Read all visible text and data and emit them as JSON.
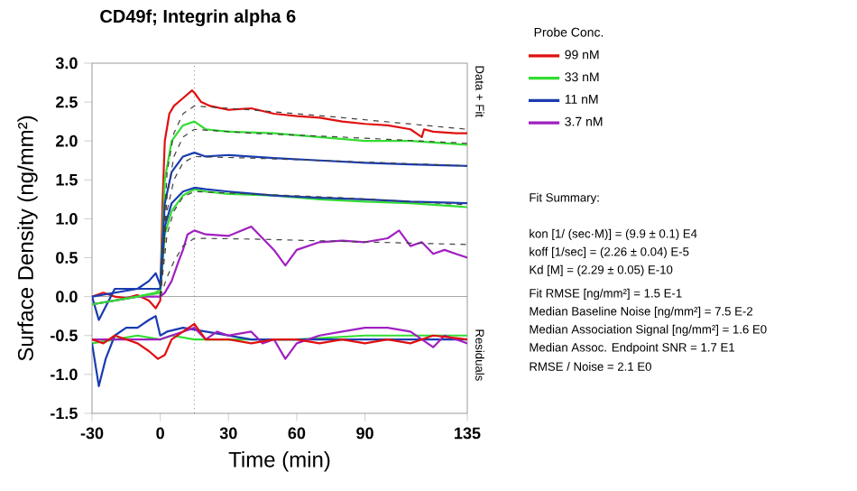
{
  "chart_data": {
    "type": "line",
    "title": "CD49f; Integrin alpha 6",
    "xlabel": "Time (min)",
    "ylabel": "Surface Density (ng/mm²)",
    "legend_title": "Probe Conc.",
    "legend": "right",
    "marker": "none",
    "xlim": [
      -30,
      135
    ],
    "xticks": [
      -30,
      0,
      30,
      60,
      90,
      135
    ],
    "ylim": [
      -1.5,
      3.0
    ],
    "yticks": [
      -1.5,
      {
        "value": -1.0,
        "label": "-1.0"
      },
      -0.5,
      {
        "value": 0.0,
        "label": "0.0"
      },
      0.5,
      {
        "value": 1.0,
        "label": "1.0"
      },
      1.5,
      {
        "value": 2.0,
        "label": "2.0"
      },
      2.5,
      {
        "value": 3.0,
        "label": "3.0"
      }
    ],
    "ref_lines": [
      {
        "axis": "y",
        "value": 0,
        "color": "#808080",
        "line_style": "solid"
      },
      {
        "axis": "x",
        "value": 15,
        "color": "#404040",
        "line_style": "dotted"
      }
    ],
    "annotations": [
      "Data + Fit",
      "Residuals",
      "Fit Summary:",
      "kon  [1/ (sec·M)]  =   (9.9 ± 0.1) E4",
      "koff  [1/sec]  =   (2.26 ± 0.04) E-5",
      "Kd  [M]  =   (2.29 ± 0.05) E-10",
      "Fit RMSE [ng/mm²]  =   1.5 E-1",
      "Median Baseline Noise [ng/mm²]  =   7.5 E-2",
      "Median Association Signal [ng/mm²]  =   1.6 E0",
      "Median Assoc. Endpoint SNR  =   1.7 E1",
      "RMSE / Noise  =   2.1 E0"
    ],
    "series": [
      {
        "name": "99 nM",
        "color": "#e01010",
        "x": [
          -30,
          -25,
          -20,
          -15,
          -10,
          -5,
          -2,
          0,
          1,
          2,
          4,
          6,
          10,
          14,
          15,
          18,
          22,
          30,
          40,
          50,
          60,
          70,
          80,
          90,
          100,
          110,
          115,
          116,
          120,
          130,
          135
        ],
        "values": [
          0.0,
          0.05,
          0.0,
          -0.02,
          0.02,
          -0.05,
          -0.15,
          -0.05,
          1.2,
          2.0,
          2.35,
          2.45,
          2.55,
          2.65,
          2.62,
          2.5,
          2.45,
          2.4,
          2.42,
          2.35,
          2.32,
          2.3,
          2.25,
          2.22,
          2.2,
          2.15,
          2.05,
          2.15,
          2.12,
          2.1,
          2.1
        ]
      },
      {
        "name": "33 nM",
        "color": "#33dd33",
        "x": [
          -30,
          -20,
          -10,
          -2,
          0,
          2,
          5,
          10,
          15,
          20,
          30,
          50,
          70,
          90,
          110,
          135
        ],
        "values": [
          -0.1,
          -0.05,
          0.0,
          0.05,
          0.1,
          1.5,
          2.0,
          2.2,
          2.25,
          2.15,
          2.12,
          2.1,
          2.05,
          2.0,
          2.0,
          1.95
        ]
      },
      {
        "name": "11 nM",
        "color": "#1a3cb0",
        "x": [
          -30,
          -27,
          -20,
          -10,
          -5,
          -2,
          0,
          2,
          5,
          10,
          15,
          20,
          30,
          50,
          70,
          90,
          110,
          135
        ],
        "values": [
          0.0,
          -0.3,
          0.1,
          0.1,
          0.2,
          0.3,
          0.15,
          1.2,
          1.6,
          1.8,
          1.85,
          1.8,
          1.82,
          1.78,
          1.75,
          1.72,
          1.7,
          1.68
        ]
      },
      {
        "name": "3.7 nM",
        "color": "#a020c0",
        "x": [
          -30,
          -20,
          -10,
          0,
          2,
          5,
          8,
          10,
          12,
          15,
          20,
          30,
          40,
          45,
          50,
          55,
          60,
          70,
          80,
          90,
          100,
          105,
          110,
          115,
          120,
          125,
          135
        ],
        "values": [
          -0.1,
          -0.05,
          0.0,
          0.0,
          0.05,
          0.2,
          0.45,
          0.6,
          0.8,
          0.85,
          0.8,
          0.78,
          0.9,
          0.75,
          0.6,
          0.4,
          0.6,
          0.7,
          0.72,
          0.7,
          0.75,
          0.85,
          0.65,
          0.7,
          0.55,
          0.6,
          0.5
        ]
      },
      {
        "color": "#33dd33",
        "x": [
          -30,
          -20,
          -10,
          0,
          2,
          5,
          10,
          15,
          20,
          30,
          50,
          70,
          90,
          110,
          135
        ],
        "values": [
          -0.1,
          -0.05,
          0.0,
          0.05,
          0.8,
          1.1,
          1.3,
          1.38,
          1.35,
          1.32,
          1.3,
          1.25,
          1.22,
          1.2,
          1.15
        ]
      },
      {
        "color": "#1a3cb0",
        "x": [
          -30,
          -20,
          -10,
          0,
          2,
          5,
          10,
          15,
          20,
          30,
          50,
          70,
          90,
          110,
          135
        ],
        "values": [
          0.0,
          0.05,
          0.1,
          0.1,
          0.9,
          1.2,
          1.35,
          1.4,
          1.38,
          1.35,
          1.3,
          1.27,
          1.25,
          1.22,
          1.2
        ]
      },
      {
        "color": "#404040",
        "line_style": "dashed",
        "x": [
          0,
          3,
          6,
          10,
          15,
          40,
          80,
          135
        ],
        "values": [
          0.0,
          1.6,
          2.1,
          2.35,
          2.45,
          2.4,
          2.3,
          2.15
        ]
      },
      {
        "color": "#404040",
        "line_style": "dashed",
        "x": [
          0,
          3,
          6,
          10,
          15,
          40,
          80,
          135
        ],
        "values": [
          0.0,
          1.3,
          1.8,
          2.05,
          2.15,
          2.1,
          2.05,
          1.97
        ]
      },
      {
        "color": "#404040",
        "line_style": "dashed",
        "x": [
          0,
          3,
          6,
          10,
          15,
          40,
          80,
          135
        ],
        "values": [
          0.0,
          1.1,
          1.5,
          1.72,
          1.8,
          1.78,
          1.74,
          1.68
        ]
      },
      {
        "color": "#404040",
        "line_style": "dashed",
        "x": [
          0,
          3,
          6,
          10,
          15,
          40,
          80,
          135
        ],
        "values": [
          0.0,
          0.8,
          1.1,
          1.28,
          1.35,
          1.32,
          1.27,
          1.18
        ]
      },
      {
        "color": "#404040",
        "line_style": "dashed",
        "x": [
          0,
          3,
          6,
          10,
          15,
          40,
          80,
          135
        ],
        "values": [
          0.0,
          0.25,
          0.45,
          0.65,
          0.75,
          0.74,
          0.71,
          0.67
        ]
      },
      {
        "color": "#33dd33",
        "x": [
          -30,
          -20,
          -10,
          0,
          5,
          15,
          30,
          60,
          90,
          120,
          135
        ],
        "values": [
          -0.6,
          -0.55,
          -0.5,
          -0.55,
          -0.5,
          -0.55,
          -0.55,
          -0.55,
          -0.5,
          -0.5,
          -0.5
        ]
      },
      {
        "color": "#1a3cb0",
        "x": [
          -30,
          -27,
          -24,
          -20,
          -15,
          -10,
          -5,
          -2,
          0,
          3,
          10,
          20,
          40,
          60,
          80,
          100,
          135
        ],
        "values": [
          -0.6,
          -1.15,
          -0.8,
          -0.5,
          -0.4,
          -0.4,
          -0.3,
          -0.25,
          -0.5,
          -0.45,
          -0.4,
          -0.45,
          -0.55,
          -0.55,
          -0.55,
          -0.55,
          -0.55
        ]
      },
      {
        "color": "#a020c0",
        "x": [
          -30,
          -20,
          -10,
          0,
          5,
          10,
          15,
          20,
          25,
          30,
          40,
          45,
          50,
          55,
          60,
          70,
          80,
          90,
          100,
          110,
          120,
          125,
          135
        ],
        "values": [
          -0.55,
          -0.55,
          -0.55,
          -0.55,
          -0.5,
          -0.45,
          -0.4,
          -0.55,
          -0.45,
          -0.5,
          -0.45,
          -0.6,
          -0.55,
          -0.8,
          -0.6,
          -0.5,
          -0.45,
          -0.4,
          -0.4,
          -0.45,
          -0.65,
          -0.5,
          -0.6
        ]
      },
      {
        "color": "#e01010",
        "x": [
          -30,
          -25,
          -20,
          -15,
          -10,
          -5,
          -1,
          2,
          5,
          10,
          15,
          20,
          30,
          40,
          50,
          60,
          70,
          80,
          90,
          100,
          110,
          120,
          135
        ],
        "values": [
          -0.55,
          -0.6,
          -0.5,
          -0.55,
          -0.6,
          -0.7,
          -0.8,
          -0.75,
          -0.55,
          -0.45,
          -0.35,
          -0.55,
          -0.55,
          -0.6,
          -0.55,
          -0.55,
          -0.6,
          -0.55,
          -0.6,
          -0.55,
          -0.6,
          -0.5,
          -0.55
        ]
      }
    ]
  }
}
